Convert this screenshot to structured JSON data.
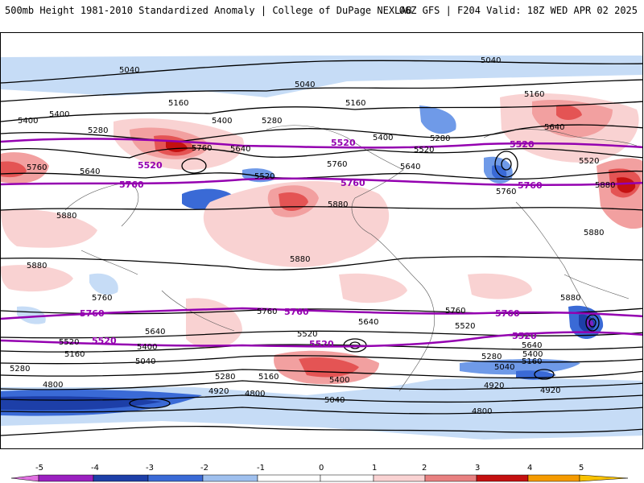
{
  "header": {
    "left_title": "500mb Height 1981-2010 Standardized Anomaly | College of DuPage NEXLAB",
    "right_title": "06Z GFS | F204 Valid: 18Z WED APR 02 2025"
  },
  "contours": {
    "black_labels": [
      "5040",
      "5160",
      "5280",
      "5400",
      "5520",
      "5640",
      "5760",
      "5880",
      "4920",
      "4800"
    ],
    "purple_labels": [
      "5520",
      "5760"
    ]
  },
  "colors": {
    "anom_neg5": "#7a20c0",
    "anom_neg4": "#1d3fa8",
    "anom_neg3": "#3a6ad6",
    "anom_neg2": "#6f9ae8",
    "anom_neg1": "#c6dcf6",
    "anom_pos1": "#f9d2d2",
    "anom_pos2": "#f2a0a0",
    "anom_pos3": "#e45454",
    "anom_pos4": "#c41010",
    "anom_pos5": "#f59a00",
    "contour_black": "#000000",
    "contour_purple": "#9400b0"
  },
  "colorbar": {
    "ticks": [
      "-5",
      "-4",
      "-3",
      "-2",
      "-1",
      "0",
      "1",
      "2",
      "3",
      "4",
      "5"
    ]
  }
}
